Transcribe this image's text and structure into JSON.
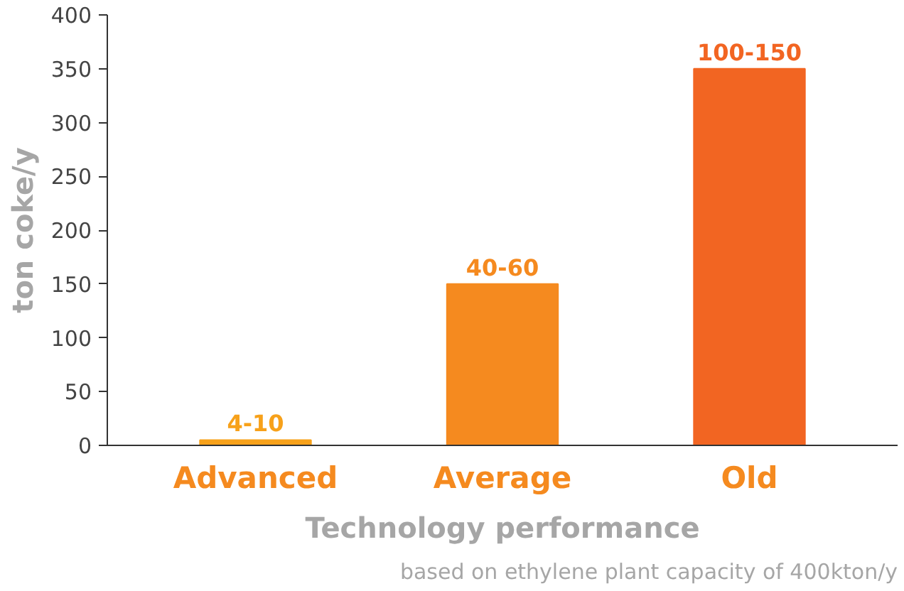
{
  "chart_data": {
    "type": "bar",
    "categories": [
      "Advanced",
      "Average",
      "Old"
    ],
    "values": [
      5,
      150,
      350
    ],
    "colors": [
      "#f7a11a",
      "#f58a1f",
      "#f26522"
    ],
    "value_labels": [
      "4-10",
      "40-60",
      "100-150"
    ],
    "ylabel": "ton coke/y",
    "xlabel": "Technology performance",
    "annotations": [
      "based on ethylene plant capacity of 400kton/y"
    ],
    "ylim": [
      0,
      400
    ],
    "yticks": [
      0,
      50,
      100,
      150,
      200,
      250,
      300,
      350,
      400
    ],
    "grid": false
  }
}
